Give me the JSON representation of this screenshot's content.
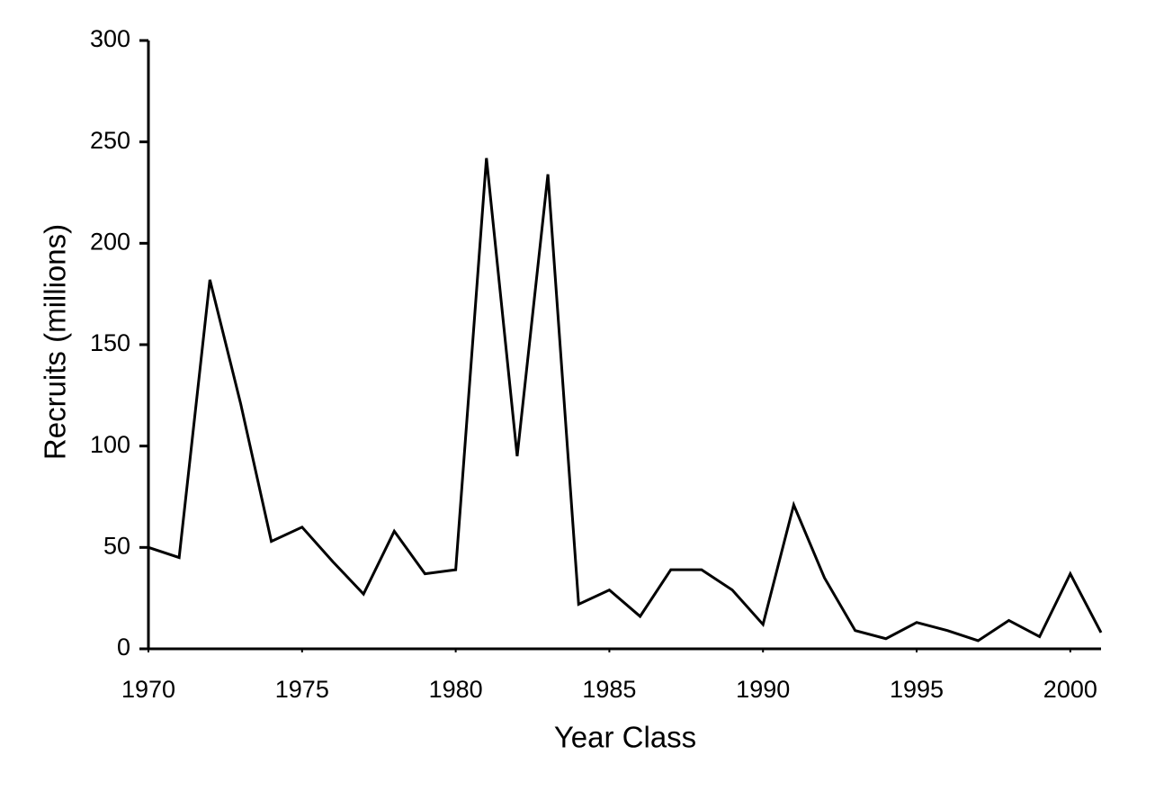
{
  "chart_data": {
    "type": "line",
    "x_label": "Year Class",
    "y_label": "Recruits (millions)",
    "x": [
      1970,
      1971,
      1972,
      1973,
      1974,
      1975,
      1976,
      1977,
      1978,
      1979,
      1980,
      1981,
      1982,
      1983,
      1984,
      1985,
      1986,
      1987,
      1988,
      1989,
      1990,
      1991,
      1992,
      1993,
      1994,
      1995,
      1996,
      1997,
      1998,
      1999,
      2000,
      2001
    ],
    "values": [
      50,
      45,
      182,
      121,
      53,
      60,
      43,
      27,
      58,
      37,
      39,
      242,
      95,
      234,
      22,
      29,
      16,
      39,
      39,
      29,
      12,
      71,
      35,
      9,
      5,
      13,
      9,
      4,
      14,
      6,
      37,
      8
    ],
    "color": "#000000",
    "xlim": [
      1970,
      2001
    ],
    "xticks": [
      1970,
      1975,
      1980,
      1985,
      1990,
      1995,
      2000
    ],
    "ylim": [
      0,
      300
    ],
    "yticks": [
      0,
      50,
      100,
      150,
      200,
      250,
      300
    ],
    "grid": false
  }
}
